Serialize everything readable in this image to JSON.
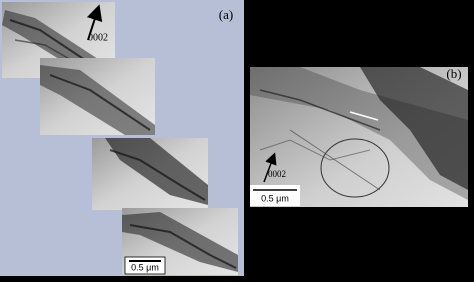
{
  "panel_a": {
    "label": "(a)",
    "arrow_label": "0002",
    "scale_bar": "0.5 μm"
  },
  "panel_b": {
    "label": "(b)",
    "arrow_label": "0002",
    "scale_bar": "0.5 μm"
  }
}
